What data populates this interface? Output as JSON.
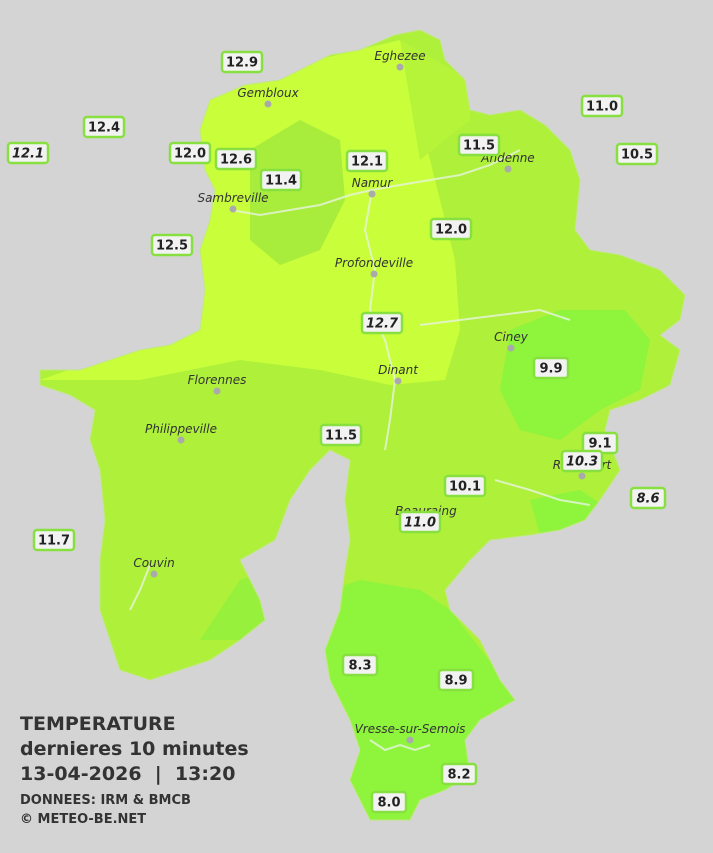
{
  "stations": [
    {
      "label": "12.9",
      "italic": false
    },
    {
      "label": "12.4",
      "italic": false
    },
    {
      "label": "12.1",
      "italic": true
    },
    {
      "label": "12.0",
      "italic": false
    },
    {
      "label": "12.6",
      "italic": false
    },
    {
      "label": "11.4",
      "italic": false
    },
    {
      "label": "12.1",
      "italic": false
    },
    {
      "label": "11.5",
      "italic": false
    },
    {
      "label": "11.0",
      "italic": false
    },
    {
      "label": "10.5",
      "italic": false
    },
    {
      "label": "12.0",
      "italic": false
    },
    {
      "label": "12.5",
      "italic": false
    },
    {
      "label": "12.7",
      "italic": true
    },
    {
      "label": "9.9",
      "italic": false
    },
    {
      "label": "11.5",
      "italic": false
    },
    {
      "label": "9.1",
      "italic": false
    },
    {
      "label": "10.3",
      "italic": true
    },
    {
      "label": "10.1",
      "italic": false
    },
    {
      "label": "11.0",
      "italic": true
    },
    {
      "label": "8.6",
      "italic": true
    },
    {
      "label": "11.7",
      "italic": false
    },
    {
      "label": "8.3",
      "italic": false
    },
    {
      "label": "8.9",
      "italic": false
    },
    {
      "label": "8.2",
      "italic": false
    },
    {
      "label": "8.0",
      "italic": false
    }
  ],
  "cities": [
    "Eghezee",
    "Gembloux",
    "Andenne",
    "Namur",
    "Sambreville",
    "Profondeville",
    "Ciney",
    "Dinant",
    "Florennes",
    "Philippeville",
    "Rochefort",
    "Beauraing",
    "Couvin",
    "Vresse-sur-Semois"
  ],
  "legend": {
    "title": "TEMPERATURE",
    "subtitle": "dernieres 10 minutes",
    "datetime": "13-04-2026  |  13:20",
    "source": "DONNEES: IRM & BMCB",
    "copyright": "© METEO-BE.NET"
  }
}
